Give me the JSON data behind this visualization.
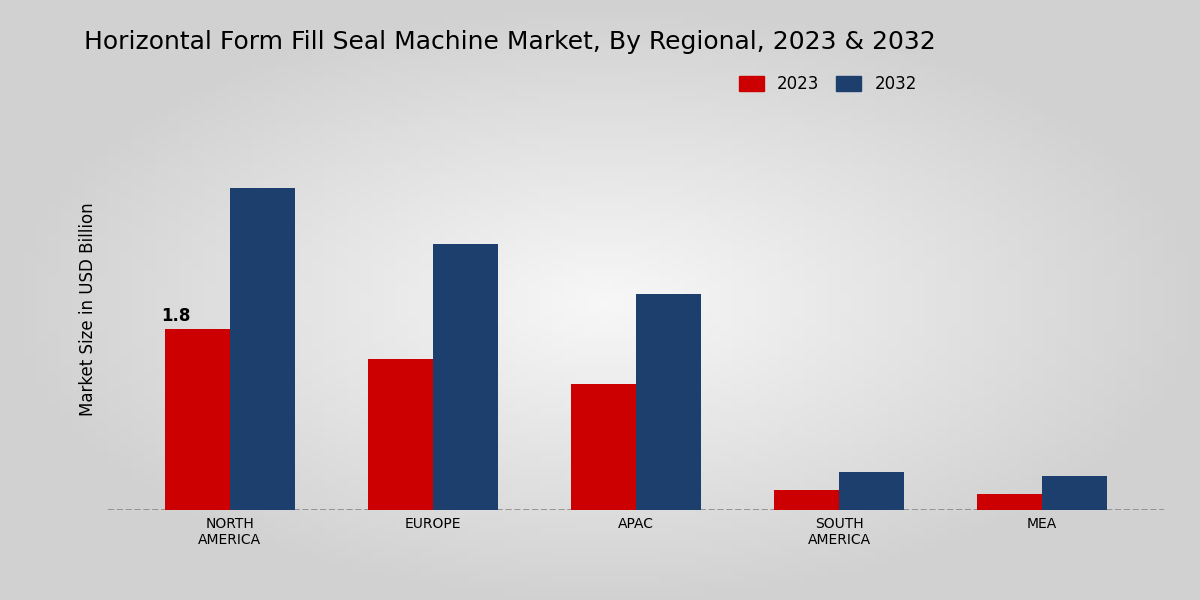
{
  "title": "Horizontal Form Fill Seal Machine Market, By Regional, 2023 & 2032",
  "ylabel": "Market Size in USD Billion",
  "categories": [
    "NORTH\nAMERICA",
    "EUROPE",
    "APAC",
    "SOUTH\nAMERICA",
    "MEA"
  ],
  "values_2023": [
    1.8,
    1.5,
    1.25,
    0.2,
    0.16
  ],
  "values_2032": [
    3.2,
    2.65,
    2.15,
    0.38,
    0.34
  ],
  "color_2023": "#cc0000",
  "color_2032": "#1c3f6e",
  "label_2023": "2023",
  "label_2032": "2032",
  "annotation_value": "1.8",
  "annotation_bar_index": 0,
  "bar_width": 0.32,
  "ylim": [
    0,
    4.0
  ],
  "bg_outer": "#d0d0d0",
  "bg_inner": "#f5f5f5",
  "legend_fontsize": 12,
  "title_fontsize": 18,
  "ylabel_fontsize": 12,
  "tick_fontsize": 10,
  "annotation_fontsize": 12,
  "bottom_bar_color": "#cc0000"
}
